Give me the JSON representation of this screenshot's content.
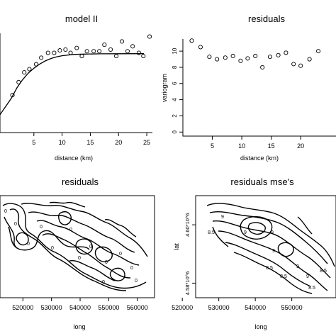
{
  "chart_data": [
    {
      "type": "scatter",
      "title": "model II",
      "xlabel": "distance (km)",
      "ylabel": "",
      "xlim": [
        -1,
        26
      ],
      "ylim": [
        -0.6,
        11.6
      ],
      "xticks": [
        5,
        10,
        15,
        20,
        25
      ],
      "grid": false,
      "points": [
        [
          1.2,
          4.0
        ],
        [
          2.3,
          5.6
        ],
        [
          3.3,
          6.8
        ],
        [
          4.2,
          7.2
        ],
        [
          5.4,
          7.8
        ],
        [
          6.3,
          8.6
        ],
        [
          7.5,
          9.2
        ],
        [
          8.6,
          9.2
        ],
        [
          9.6,
          9.5
        ],
        [
          10.6,
          9.6
        ],
        [
          11.5,
          9.2
        ],
        [
          12.6,
          9.8
        ],
        [
          13.5,
          8.8
        ],
        [
          14.4,
          9.4
        ],
        [
          15.6,
          9.4
        ],
        [
          16.6,
          9.4
        ],
        [
          17.5,
          10.2
        ],
        [
          18.6,
          9.6
        ],
        [
          19.6,
          8.8
        ],
        [
          20.6,
          10.6
        ],
        [
          21.6,
          9.4
        ],
        [
          22.5,
          10.0
        ],
        [
          23.6,
          9.2
        ],
        [
          24.4,
          8.8
        ],
        [
          25.5,
          11.2
        ]
      ],
      "curve": [
        [
          -1,
          1.6
        ],
        [
          1,
          3.6
        ],
        [
          2,
          4.9
        ],
        [
          3,
          5.9
        ],
        [
          4,
          6.7
        ],
        [
          5,
          7.3
        ],
        [
          6,
          7.8
        ],
        [
          7,
          8.2
        ],
        [
          8,
          8.5
        ],
        [
          9,
          8.7
        ],
        [
          10,
          8.85
        ],
        [
          12,
          9.0
        ],
        [
          14,
          9.05
        ],
        [
          17,
          9.08
        ],
        [
          20,
          9.09
        ],
        [
          24.5,
          9.1
        ]
      ]
    },
    {
      "type": "scatter",
      "title": "residuals",
      "xlabel": "distance (km)",
      "ylabel": "variogram",
      "xlim": [
        0,
        26
      ],
      "ylim": [
        -0.5,
        11.5
      ],
      "xticks": [
        5,
        10,
        15,
        20
      ],
      "yticks": [
        0,
        2,
        4,
        6,
        8,
        10
      ],
      "grid": false,
      "points": [
        [
          1.5,
          11.3
        ],
        [
          3.0,
          10.5
        ],
        [
          4.5,
          9.3
        ],
        [
          5.8,
          9.0
        ],
        [
          7.2,
          9.2
        ],
        [
          8.5,
          9.4
        ],
        [
          9.8,
          8.8
        ],
        [
          11.0,
          9.1
        ],
        [
          12.3,
          9.4
        ],
        [
          13.5,
          8.0
        ],
        [
          14.8,
          9.3
        ],
        [
          16.2,
          9.5
        ],
        [
          17.5,
          9.8
        ],
        [
          18.8,
          8.4
        ],
        [
          20.0,
          8.2
        ],
        [
          21.5,
          9.0
        ],
        [
          23.0,
          10.0
        ]
      ]
    },
    {
      "type": "contour",
      "title": "residuals",
      "xlabel": "long",
      "ylabel": "",
      "xlim": [
        512000,
        566000
      ],
      "ylim": [
        0,
        1
      ],
      "xticks": [
        520000,
        530000,
        540000,
        550000,
        560000
      ],
      "yticks": [],
      "grid": false,
      "labels": [
        "0",
        "0",
        "0",
        "0",
        "0",
        "0",
        "0",
        "0",
        "0",
        "0",
        "0",
        "0",
        "0"
      ]
    },
    {
      "type": "contour",
      "title": "residuals mse's",
      "xlabel": "long",
      "ylabel": "lat",
      "xlim": [
        512000,
        566000
      ],
      "ylim": [
        4575000,
        4610000
      ],
      "xticks": [
        520000,
        530000,
        540000,
        550000
      ],
      "yticks": [
        4580000,
        4600000
      ],
      "yticklabels": [
        "4.58*10^6",
        "4.60*10^6"
      ],
      "grid": false,
      "labels": [
        "9",
        "8.5",
        "9",
        "9",
        "9",
        "8.5",
        "8.5",
        "9",
        "9",
        "8.5",
        "8.5"
      ]
    }
  ]
}
